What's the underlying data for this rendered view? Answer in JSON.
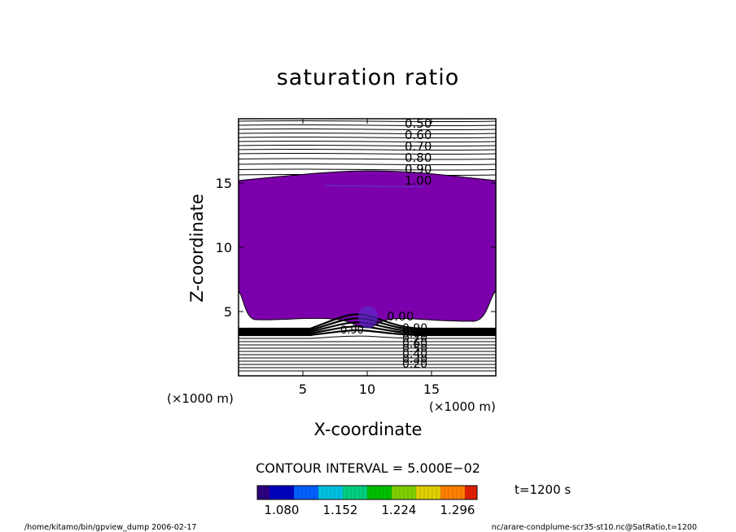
{
  "chart_data": {
    "type": "contour",
    "title": "saturation ratio",
    "xlabel": "X-coordinate",
    "ylabel": "Z-coordinate",
    "x_unit_label": "(×1000 m)",
    "z_unit_label": "(×1000 m)",
    "xlim": [
      0,
      20
    ],
    "ylim": [
      0,
      20
    ],
    "x_ticks": [
      5,
      10,
      15
    ],
    "y_ticks": [
      5,
      10,
      15
    ],
    "contour_interval_text": "CONTOUR INTERVAL = 5.000E−02",
    "time_text": "t=1200 s",
    "upper_contour_labels": [
      "0.50",
      "0.60",
      "0.70",
      "0.80",
      "0.90",
      "1.00"
    ],
    "lower_contour_labels": [
      "0.90",
      "0.80",
      "0.70",
      "0.60",
      "0.50",
      "0.40",
      "0.30",
      "0.20"
    ],
    "lower_line_labels": [
      "0.90",
      "0.00"
    ],
    "colorbar": {
      "min": 1.05,
      "max": 1.32,
      "tick_labels": [
        "1.080",
        "1.152",
        "1.224",
        "1.296"
      ],
      "tick_values": [
        1.08,
        1.152,
        1.224,
        1.296
      ],
      "colors": [
        "#2d0080",
        "#0000c0",
        "#0060ff",
        "#00c0e0",
        "#00d080",
        "#00c000",
        "#80d000",
        "#e0d000",
        "#ff8000",
        "#e02000"
      ]
    },
    "saturated_region": {
      "z_bottom_km": 4.5,
      "z_top_km": 15.7,
      "fill_color": "#7b00ab"
    },
    "footer_left": "/home/kitamo/bin/gpview_dump   2006-02-17",
    "footer_right": "nc/arare-condplume-scr35-st10.nc@SatRatio,t=1200"
  }
}
